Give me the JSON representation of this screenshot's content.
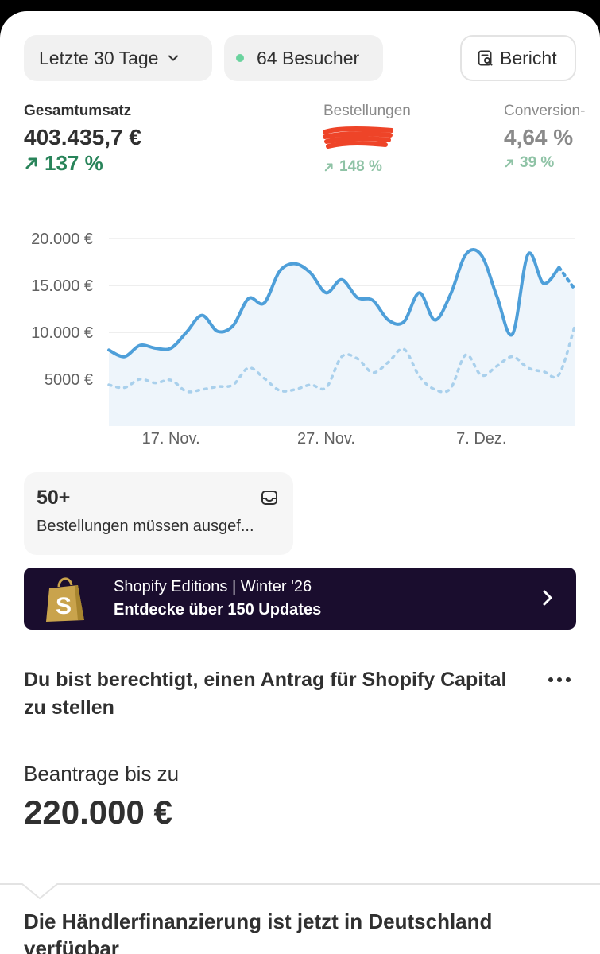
{
  "filters": {
    "date_range": "Letzte 30 Tage",
    "visitors": "64 Besucher",
    "report": "Bericht"
  },
  "metrics": [
    {
      "label": "Gesamtumsatz",
      "value": "403.435,7 €",
      "delta": "137 %"
    },
    {
      "label": "Bestellungen",
      "value": "",
      "delta": "148 %"
    },
    {
      "label": "Conversion-",
      "value": "4,64 %",
      "delta": "39 %"
    }
  ],
  "chart_data": {
    "type": "line",
    "x": [
      "13. Nov.",
      "14. Nov.",
      "15. Nov.",
      "16. Nov.",
      "17. Nov.",
      "18. Nov.",
      "19. Nov.",
      "20. Nov.",
      "21. Nov.",
      "22. Nov.",
      "23. Nov.",
      "24. Nov.",
      "25. Nov.",
      "26. Nov.",
      "27. Nov.",
      "28. Nov.",
      "29. Nov.",
      "30. Nov.",
      "1. Dez.",
      "2. Dez.",
      "3. Dez.",
      "4. Dez.",
      "5. Dez.",
      "6. Dez.",
      "7. Dez.",
      "8. Dez.",
      "9. Dez.",
      "10. Dez.",
      "11. Dez.",
      "12. Dez.",
      "13. Dez."
    ],
    "x_ticks": [
      "17. Nov.",
      "27. Nov.",
      "7. Dez."
    ],
    "y_ticks": [
      "20.000 €",
      "15.000 €",
      "10.000 €",
      "5000 €"
    ],
    "ylim": [
      0,
      21000
    ],
    "grid": true,
    "series": [
      {
        "values": [
          8100,
          7400,
          8600,
          8300,
          8300,
          10000,
          11800,
          10100,
          10700,
          13600,
          13100,
          16500,
          17300,
          16300,
          14200,
          15600,
          13700,
          13400,
          11300,
          11100,
          14200,
          11300,
          14000,
          18300,
          18200,
          13800,
          9800,
          18300,
          15200,
          16900,
          14600
        ]
      },
      {
        "values": [
          4400,
          4100,
          5000,
          4600,
          4900,
          3700,
          3900,
          4200,
          4400,
          6200,
          5100,
          3800,
          3900,
          4400,
          4100,
          7400,
          7200,
          5700,
          6800,
          8200,
          5300,
          3900,
          4000,
          7600,
          5400,
          6400,
          7400,
          6200,
          5800,
          5500,
          10600
        ]
      }
    ]
  },
  "orders_card": {
    "count": "50+",
    "description": "Bestellungen müssen ausgef..."
  },
  "banner": {
    "line1": "Shopify Editions | Winter '26",
    "line2": "Entdecke über 150 Updates"
  },
  "capital": {
    "title": "Du bist berechtigt, einen Antrag für Shopify Capital zu stellen",
    "apply_label": "Beantrage bis zu",
    "apply_amount": "220.000 €"
  },
  "financing": {
    "title": "Die Händlerfinanzierung ist jetzt in Deutschland verfügbar"
  },
  "colors": {
    "line_primary": "#4e9fd9",
    "line_secondary": "#a9d0ec",
    "positive": "#29845a",
    "banner_bg": "#1a0d2e"
  }
}
